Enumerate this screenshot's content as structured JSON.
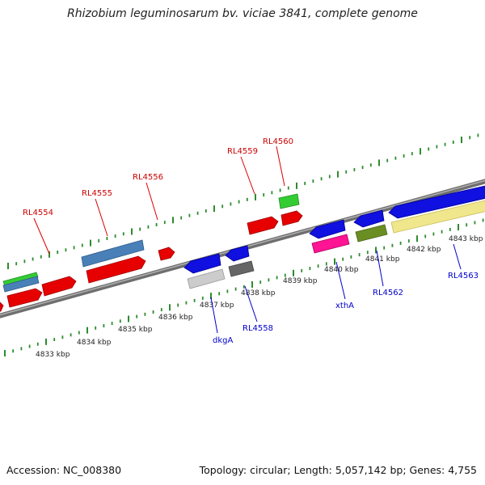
{
  "title": "Rhizobium leguminosarum bv. viciae 3841, complete genome",
  "footer": {
    "accession": "Accession: NC_008380",
    "summary": "Topology: circular; Length: 5,057,142 bp; Genes: 4,755"
  },
  "colors": {
    "backbone": "#7a7a7a",
    "tick": "#2e8b2e",
    "forward_label": "#cc0000",
    "reverse_label": "#0000cc",
    "cds_red": "#e60000",
    "cds_blue": "#1010e0",
    "steel_blue": "#4a80b8",
    "green": "#33cc33",
    "magenta": "#ff1493",
    "olive": "#6b8e23",
    "light_gray": "#cccccc",
    "dark_gray": "#666666",
    "khaki": "#f0e68c"
  },
  "kbp_labels": [
    "4833 kbp",
    "4834 kbp",
    "4835 kbp",
    "4836 kbp",
    "4837 kbp",
    "4838 kbp",
    "4839 kbp",
    "4840 kbp",
    "4841 kbp",
    "4842 kbp",
    "4843 kbp"
  ],
  "forward_labels": [
    "RL4554",
    "RL4555",
    "RL4556",
    "RL4559",
    "RL4560"
  ],
  "reverse_labels": [
    "dkgA",
    "RL4558",
    "xthA",
    "RL4562",
    "RL4563"
  ]
}
